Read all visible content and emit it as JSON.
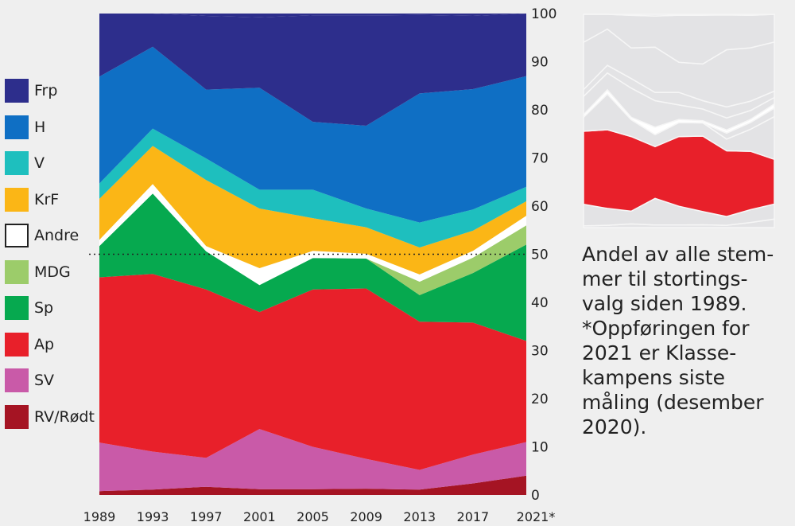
{
  "chart_data": {
    "type": "area",
    "stacked": true,
    "x": [
      "1989",
      "1993",
      "1997",
      "2001",
      "2005",
      "2009",
      "2013",
      "2017",
      "2021*"
    ],
    "ylim": [
      0,
      100
    ],
    "yticks": [
      "0",
      "10",
      "20",
      "30",
      "40",
      "50",
      "60",
      "70",
      "80",
      "90",
      "100"
    ],
    "reference_line": 50,
    "series": [
      {
        "name": "RV/Rødt",
        "color": "#a51423",
        "values": [
          0.8,
          1.1,
          1.7,
          1.2,
          1.2,
          1.3,
          1.1,
          2.4,
          4.0
        ]
      },
      {
        "name": "SV",
        "color": "#c95aa8",
        "values": [
          10.1,
          7.9,
          6.0,
          12.5,
          8.8,
          6.2,
          4.1,
          6.0,
          7.0
        ]
      },
      {
        "name": "Ap",
        "color": "#e8202a",
        "values": [
          34.3,
          36.9,
          35.0,
          24.3,
          32.7,
          35.4,
          30.8,
          27.4,
          21.0
        ]
      },
      {
        "name": "Sp",
        "color": "#06a94f",
        "values": [
          6.5,
          16.7,
          7.9,
          5.6,
          6.5,
          6.2,
          5.5,
          10.3,
          20.0
        ]
      },
      {
        "name": "MDG",
        "color": "#9ccc6a",
        "values": [
          0.0,
          0.0,
          0.0,
          0.0,
          0.0,
          0.0,
          2.8,
          3.2,
          4.0
        ]
      },
      {
        "name": "Andre",
        "color": "#ffffff",
        "values": [
          1.3,
          2.0,
          1.1,
          3.5,
          1.5,
          1.0,
          1.5,
          1.4,
          2.0
        ]
      },
      {
        "name": "KrF",
        "color": "#fbb616",
        "values": [
          8.5,
          7.9,
          13.7,
          12.4,
          6.8,
          5.5,
          5.6,
          4.2,
          3.0
        ]
      },
      {
        "name": "V",
        "color": "#1ebfbe",
        "values": [
          3.2,
          3.6,
          4.5,
          3.9,
          5.9,
          3.9,
          5.2,
          4.4,
          3.0
        ]
      },
      {
        "name": "H",
        "color": "#0f6fc4",
        "values": [
          22.2,
          17.0,
          14.3,
          21.2,
          14.1,
          17.2,
          26.8,
          25.0,
          23.0
        ]
      },
      {
        "name": "Frp",
        "color": "#2d2e8c",
        "values": [
          13.1,
          7.5,
          15.3,
          14.6,
          22.1,
          22.9,
          16.3,
          15.2,
          13.0
        ]
      }
    ],
    "legend": [
      "Frp",
      "H",
      "V",
      "KrF",
      "Andre",
      "MDG",
      "Sp",
      "Ap",
      "SV",
      "RV/Rødt"
    ]
  },
  "caption": {
    "lines": [
      "Andel av alle stem-",
      "mer til stortings-",
      "valg siden 1989.",
      "*Oppføringen for",
      "2021 er Klasse-",
      "kampens siste",
      "måling (desember",
      "2020)."
    ]
  }
}
